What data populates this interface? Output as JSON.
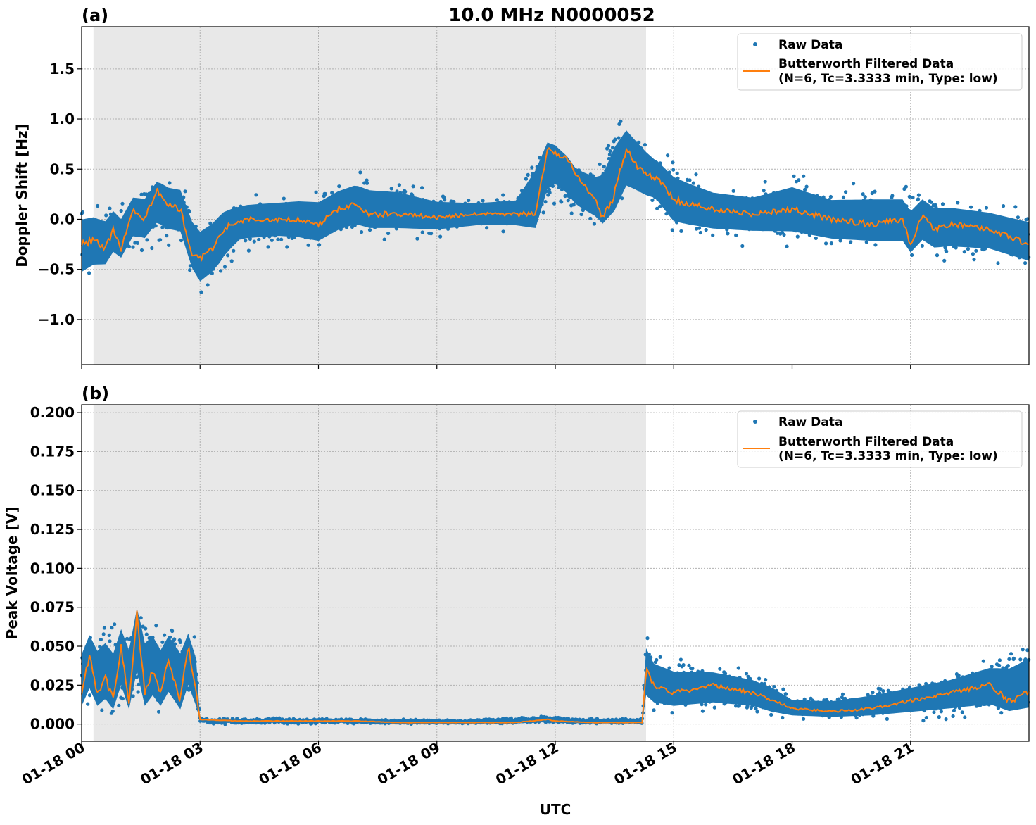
{
  "title": "10.0 MHz N0000052",
  "xlabel": "UTC",
  "x_ticks": [
    "01-18 00",
    "01-18 03",
    "01-18 06",
    "01-18 09",
    "01-18 12",
    "01-18 15",
    "01-18 18",
    "01-18 21"
  ],
  "colors": {
    "raw": "#1f77b4",
    "filtered": "#ff7f0e",
    "night_shade": "#e8e8e8"
  },
  "chart_data": [
    {
      "type": "scatter",
      "panel_label": "(a)",
      "ylabel": "Doppler Shift [Hz]",
      "xlim_hours": [
        0,
        24
      ],
      "ylim": [
        -1.45,
        1.92
      ],
      "y_ticks": [
        1.5,
        1.0,
        0.5,
        0.0,
        -0.5,
        -1.0
      ],
      "y_tick_labels": [
        "1.5",
        "1.0",
        "0.5",
        "0.0",
        "−0.5",
        "−1.0"
      ],
      "grid": true,
      "legend_position": "top-right",
      "shaded_interval_hours": [
        0.3,
        14.3
      ],
      "legend": {
        "raw_label": "Raw Data",
        "filtered_label_1": "Butterworth Filtered Data",
        "filtered_label_2": "(N=6, Tc=3.3333 min, Type: low)"
      },
      "filtered_trend": {
        "x_hours": [
          0,
          0.3,
          0.6,
          0.8,
          1.0,
          1.3,
          1.6,
          1.9,
          2.2,
          2.5,
          2.8,
          3.0,
          3.3,
          3.6,
          3.8,
          4.2,
          4.8,
          5.5,
          6.0,
          6.5,
          6.9,
          7.3,
          8.0,
          9.0,
          10.0,
          11.0,
          11.5,
          11.8,
          12.3,
          12.7,
          13.0,
          13.2,
          13.5,
          13.8,
          14.0,
          14.3,
          14.6,
          15.0,
          15.4,
          16.0,
          17.0,
          18.0,
          19.0,
          20.0,
          20.8,
          21.0,
          21.3,
          21.6,
          22.0,
          23.0,
          24.0
        ],
        "y": [
          -0.25,
          -0.2,
          -0.3,
          -0.1,
          -0.3,
          0.1,
          0.0,
          0.3,
          0.15,
          0.1,
          -0.35,
          -0.4,
          -0.3,
          -0.1,
          -0.05,
          0.0,
          0.0,
          0.0,
          -0.05,
          0.1,
          0.15,
          0.05,
          0.05,
          0.02,
          0.05,
          0.05,
          0.05,
          0.7,
          0.6,
          0.35,
          0.2,
          0.0,
          0.25,
          0.7,
          0.55,
          0.45,
          0.4,
          0.2,
          0.15,
          0.1,
          0.05,
          0.1,
          0.0,
          -0.05,
          0.0,
          -0.25,
          0.05,
          -0.1,
          -0.05,
          -0.1,
          -0.25
        ]
      },
      "raw_spread": {
        "x_hours": [
          0,
          0.5,
          1.0,
          1.5,
          2.0,
          2.5,
          3.0,
          3.5,
          4.0,
          5.0,
          6.0,
          7.0,
          8.0,
          9.0,
          10.0,
          11.0,
          11.5,
          12.0,
          12.5,
          13.0,
          13.5,
          14.0,
          14.5,
          15.0,
          16.0,
          17.0,
          18.0,
          19.0,
          20.0,
          21.0,
          22.0,
          23.0,
          24.0
        ],
        "low": [
          -0.75,
          -0.6,
          -0.45,
          -0.35,
          -0.3,
          -0.3,
          -0.8,
          -0.65,
          -0.35,
          -0.3,
          -0.35,
          -0.2,
          -0.2,
          -0.2,
          -0.15,
          -0.15,
          -0.2,
          0.1,
          -0.1,
          -0.1,
          -0.05,
          0.1,
          0.05,
          -0.2,
          -0.25,
          -0.25,
          -0.3,
          -0.35,
          -0.35,
          -0.4,
          -0.45,
          -0.45,
          -0.55
        ],
        "high": [
          0.2,
          0.2,
          0.25,
          0.35,
          0.45,
          0.45,
          0.1,
          0.2,
          0.25,
          0.3,
          0.35,
          0.5,
          0.45,
          0.3,
          0.25,
          0.3,
          0.85,
          0.8,
          0.55,
          0.6,
          1.1,
          1.0,
          0.75,
          0.6,
          0.4,
          0.35,
          0.5,
          0.35,
          0.4,
          0.35,
          0.25,
          0.2,
          0.15
        ]
      }
    },
    {
      "type": "scatter",
      "panel_label": "(b)",
      "ylabel": "Peak Voltage [V]",
      "xlim_hours": [
        0,
        24
      ],
      "ylim": [
        -0.011,
        0.205
      ],
      "y_ticks": [
        0.2,
        0.175,
        0.15,
        0.125,
        0.1,
        0.075,
        0.05,
        0.025,
        0.0
      ],
      "y_tick_labels": [
        "0.200",
        "0.175",
        "0.150",
        "0.125",
        "0.100",
        "0.075",
        "0.050",
        "0.025",
        "0.000"
      ],
      "grid": true,
      "legend_position": "top-right",
      "shaded_interval_hours": [
        0.3,
        14.3
      ],
      "legend": {
        "raw_label": "Raw Data",
        "filtered_label_1": "Butterworth Filtered Data",
        "filtered_label_2": "(N=6, Tc=3.3333 min, Type: low)"
      },
      "filtered_trend": {
        "x_hours": [
          0,
          0.2,
          0.4,
          0.6,
          0.8,
          1.0,
          1.2,
          1.4,
          1.6,
          1.8,
          2.0,
          2.2,
          2.5,
          2.7,
          2.9,
          3.0,
          4.0,
          5.0,
          6.0,
          7.0,
          8.0,
          9.0,
          10.0,
          11.0,
          11.8,
          12.0,
          13.0,
          14.2,
          14.3,
          14.5,
          15.0,
          16.0,
          17.0,
          17.5,
          18.0,
          19.0,
          20.0,
          21.0,
          22.0,
          23.0,
          23.5,
          24.0
        ],
        "y": [
          0.02,
          0.045,
          0.02,
          0.03,
          0.015,
          0.05,
          0.015,
          0.07,
          0.02,
          0.035,
          0.02,
          0.04,
          0.015,
          0.05,
          0.02,
          0.003,
          0.002,
          0.002,
          0.002,
          0.002,
          0.001,
          0.001,
          0.001,
          0.001,
          0.003,
          0.002,
          0.001,
          0.001,
          0.035,
          0.025,
          0.02,
          0.025,
          0.02,
          0.015,
          0.01,
          0.008,
          0.01,
          0.015,
          0.02,
          0.025,
          0.015,
          0.02
        ]
      },
      "raw_spread": {
        "x_hours": [
          0,
          0.5,
          1.0,
          1.5,
          2.0,
          2.5,
          2.9,
          3.0,
          6.0,
          9.0,
          11.5,
          12.0,
          12.5,
          14.2,
          14.3,
          14.5,
          15.0,
          16.0,
          17.0,
          17.5,
          18.0,
          19.0,
          20.0,
          21.0,
          22.0,
          23.0,
          24.0
        ],
        "low": [
          0.005,
          0.005,
          0.005,
          0.005,
          0.005,
          0.005,
          0.005,
          0.0,
          0.0,
          0.0,
          0.0,
          0.0,
          0.0,
          0.0,
          0.005,
          0.005,
          0.005,
          0.005,
          0.005,
          0.002,
          0.002,
          0.002,
          0.002,
          0.002,
          0.002,
          0.003,
          0.003
        ],
        "high": [
          0.065,
          0.07,
          0.07,
          0.08,
          0.07,
          0.07,
          0.06,
          0.004,
          0.004,
          0.003,
          0.005,
          0.006,
          0.004,
          0.004,
          0.06,
          0.05,
          0.045,
          0.04,
          0.035,
          0.03,
          0.02,
          0.02,
          0.025,
          0.03,
          0.035,
          0.045,
          0.06
        ]
      }
    }
  ]
}
